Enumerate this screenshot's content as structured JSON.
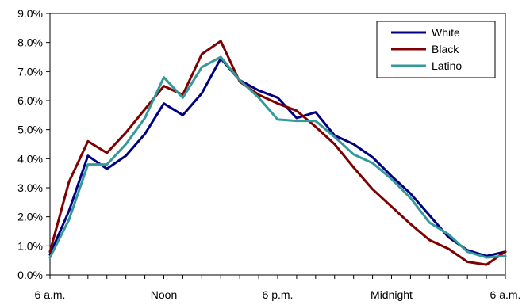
{
  "chart_data": {
    "type": "line",
    "title": "",
    "xlabel": "",
    "ylabel": "",
    "ylim": [
      0,
      9
    ],
    "y_ticks": [
      "0.0%",
      "1.0%",
      "2.0%",
      "3.0%",
      "4.0%",
      "5.0%",
      "6.0%",
      "7.0%",
      "8.0%",
      "9.0%"
    ],
    "x_tick_labels": [
      "6 a.m.",
      "Noon",
      "6 p.m.",
      "Midnight",
      "6 a.m."
    ],
    "x_tick_index": [
      0,
      6,
      12,
      18,
      24
    ],
    "x": [
      "6 a.m.",
      "7 a.m.",
      "8 a.m.",
      "9 a.m.",
      "10 a.m.",
      "11 a.m.",
      "Noon",
      "1 p.m.",
      "2 p.m.",
      "3 p.m.",
      "4 p.m.",
      "5 p.m.",
      "6 p.m.",
      "7 p.m.",
      "8 p.m.",
      "9 p.m.",
      "10 p.m.",
      "11 p.m.",
      "Midnight",
      "1 a.m.",
      "2 a.m.",
      "3 a.m.",
      "4 a.m.",
      "5 a.m.",
      "6 a.m."
    ],
    "grid": false,
    "legend_position": "top-right",
    "series": [
      {
        "name": "White",
        "color": "#000080",
        "values": [
          0.7,
          2.2,
          4.1,
          3.65,
          4.1,
          4.85,
          5.9,
          5.5,
          6.25,
          7.45,
          6.7,
          6.35,
          6.1,
          5.4,
          5.6,
          4.8,
          4.5,
          4.05,
          3.4,
          2.8,
          2.05,
          1.3,
          0.85,
          0.65,
          0.8
        ]
      },
      {
        "name": "Black",
        "color": "#800000",
        "values": [
          0.8,
          3.2,
          4.6,
          4.2,
          4.9,
          5.7,
          6.5,
          6.2,
          7.6,
          8.05,
          6.65,
          6.2,
          5.9,
          5.65,
          5.1,
          4.5,
          3.7,
          2.95,
          2.35,
          1.75,
          1.2,
          0.9,
          0.45,
          0.35,
          0.8
        ]
      },
      {
        "name": "Latino",
        "color": "#339999",
        "values": [
          0.6,
          1.9,
          3.8,
          3.8,
          4.5,
          5.4,
          6.8,
          6.1,
          7.15,
          7.5,
          6.7,
          6.1,
          5.35,
          5.3,
          5.3,
          4.75,
          4.15,
          3.85,
          3.3,
          2.65,
          1.8,
          1.4,
          0.8,
          0.6,
          0.65
        ]
      }
    ]
  }
}
